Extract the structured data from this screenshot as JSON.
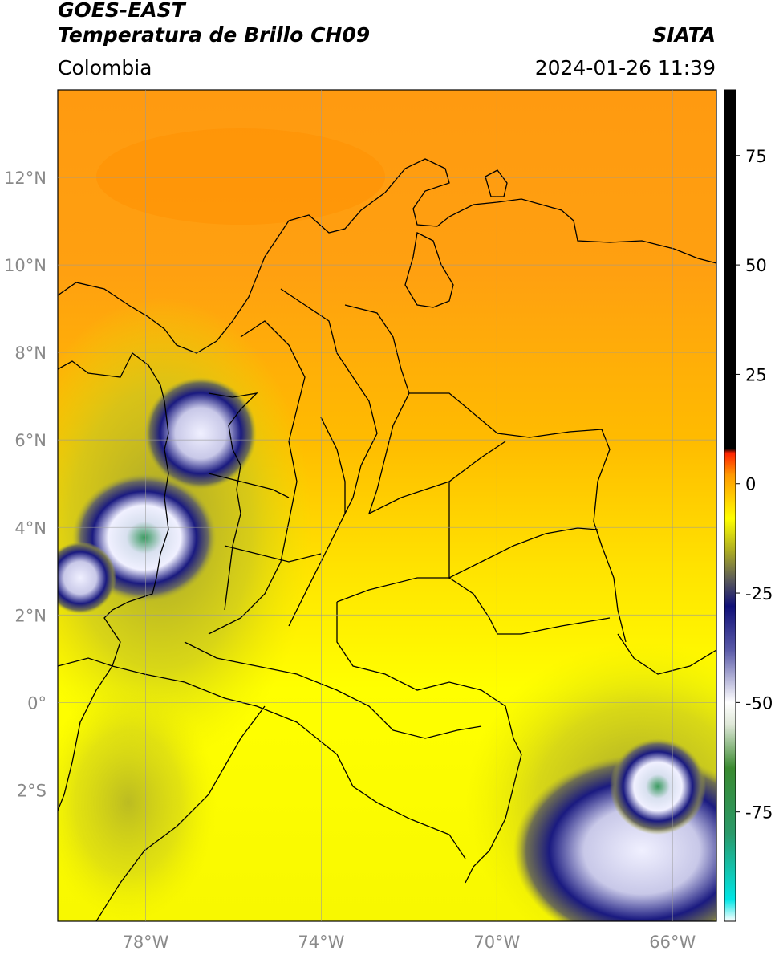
{
  "header": {
    "satellite": "GOES-EAST",
    "product": "Temperatura de Brillo CH09",
    "region": "Colombia",
    "brand": "SIATA",
    "datetime": "2024-01-26 11:39"
  },
  "map": {
    "lon_range": [
      -80,
      -65
    ],
    "lat_range": [
      -5,
      14
    ],
    "lat_ticks": [
      {
        "value": 12,
        "label": "12°N"
      },
      {
        "value": 10,
        "label": "10°N"
      },
      {
        "value": 8,
        "label": "8°N"
      },
      {
        "value": 6,
        "label": "6°N"
      },
      {
        "value": 4,
        "label": "4°N"
      },
      {
        "value": 2,
        "label": "2°N"
      },
      {
        "value": 0,
        "label": "0°"
      },
      {
        "value": -2,
        "label": "2°S"
      }
    ],
    "lon_ticks": [
      {
        "value": -78,
        "label": "78°W"
      },
      {
        "value": -74,
        "label": "74°W"
      },
      {
        "value": -70,
        "label": "70°W"
      },
      {
        "value": -66,
        "label": "66°W"
      }
    ],
    "grid": true
  },
  "colorbar": {
    "range": [
      -100,
      90
    ],
    "ticks": [
      {
        "value": 75,
        "label": "75"
      },
      {
        "value": 50,
        "label": "50"
      },
      {
        "value": 25,
        "label": "25"
      },
      {
        "value": 0,
        "label": "0"
      },
      {
        "value": -25,
        "label": "-25"
      },
      {
        "value": -50,
        "label": "-50"
      },
      {
        "value": -75,
        "label": "-75"
      }
    ],
    "stops": [
      {
        "value": -100,
        "color": "#ffffff"
      },
      {
        "value": -95,
        "color": "#00e5e5"
      },
      {
        "value": -80,
        "color": "#2a9a6a"
      },
      {
        "value": -65,
        "color": "#3a8a30"
      },
      {
        "value": -55,
        "color": "#dfe8d8"
      },
      {
        "value": -50,
        "color": "#ffffff"
      },
      {
        "value": -38,
        "color": "#5a5aa8"
      },
      {
        "value": -28,
        "color": "#101078"
      },
      {
        "value": -22,
        "color": "#5a5a5a"
      },
      {
        "value": -15,
        "color": "#b0b020"
      },
      {
        "value": -8,
        "color": "#ffff00"
      },
      {
        "value": 2,
        "color": "#ff9900"
      },
      {
        "value": 7,
        "color": "#ff2000"
      },
      {
        "value": 8,
        "color": "#000000"
      },
      {
        "value": 90,
        "color": "#000000"
      }
    ]
  },
  "colors": {
    "warm": "#ff9a10",
    "mid": "#ffcc00",
    "yellow": "#ffff00",
    "olive": "#a8a830",
    "cold_blue": "#1a1a80",
    "cold_white": "#f0f0ff",
    "cold_green": "#3a9a60",
    "border": "#000000",
    "grid": "#9a9a9a",
    "tick_text": "#8a8a8a"
  }
}
